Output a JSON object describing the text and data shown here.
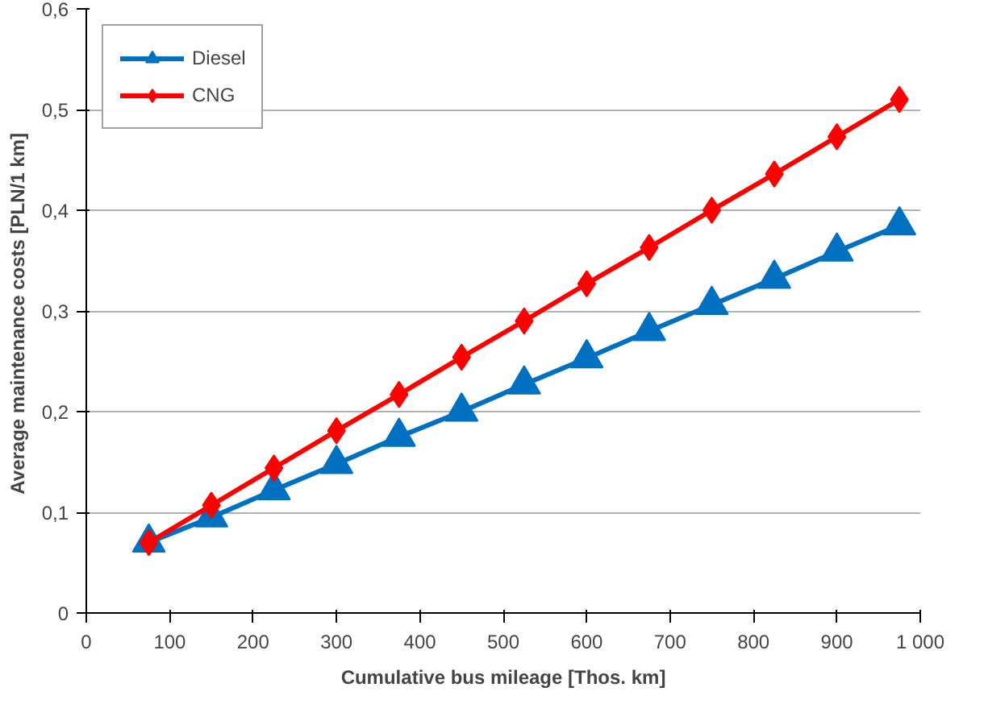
{
  "chart_data": {
    "type": "line",
    "xlabel": "Cumulative bus mileage [Thos. km]",
    "ylabel": "Average maintenance costs  [PLN/1 km]",
    "x": [
      75,
      150,
      225,
      300,
      375,
      450,
      525,
      600,
      675,
      750,
      825,
      900,
      975
    ],
    "series": [
      {
        "name": "Diesel",
        "color": "#0070c0",
        "marker": "triangle",
        "values": [
          0.07,
          0.095,
          0.122,
          0.148,
          0.175,
          0.2,
          0.227,
          0.253,
          0.28,
          0.306,
          0.332,
          0.359,
          0.385
        ]
      },
      {
        "name": "CNG",
        "color": "#ff0000",
        "marker": "diamond",
        "values": [
          0.07,
          0.107,
          0.144,
          0.181,
          0.217,
          0.254,
          0.29,
          0.327,
          0.363,
          0.4,
          0.436,
          0.473,
          0.51
        ]
      }
    ],
    "xlim": [
      0,
      1000
    ],
    "ylim": [
      0,
      0.6
    ],
    "xticks": [
      0,
      100,
      200,
      300,
      400,
      500,
      600,
      700,
      800,
      900,
      {
        "value": 1000,
        "label": "1 000"
      }
    ],
    "yticks": [
      {
        "value": 0,
        "label": "0"
      },
      {
        "value": 0.1,
        "label": "0,1"
      },
      {
        "value": 0.2,
        "label": "0,2"
      },
      {
        "value": 0.3,
        "label": "0,3"
      },
      {
        "value": 0.4,
        "label": "0,4"
      },
      {
        "value": 0.5,
        "label": "0,5"
      },
      {
        "value": 0.6,
        "label": "0,6"
      }
    ],
    "grid": "y",
    "legend": "top left",
    "line_style": "solid"
  }
}
